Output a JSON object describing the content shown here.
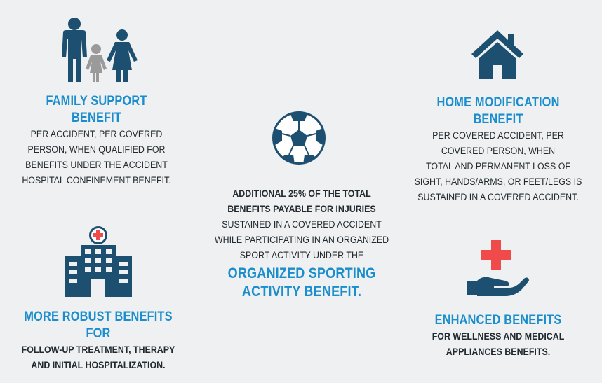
{
  "colors": {
    "navy": "#1d4f70",
    "blue_title": "#1a8dcc",
    "gray_child": "#9a9a9a",
    "red_cross": "#ef4b4b",
    "text": "#222a30",
    "background": "#eef0f1"
  },
  "family": {
    "icon": "family-icon",
    "title": "FAMILY SUPPORT BENEFIT",
    "lines": [
      "PER ACCIDENT, PER COVERED",
      "PERSON, WHEN QUALIFIED FOR",
      "BENEFITS UNDER THE ACCIDENT",
      "HOSPITAL CONFINEMENT BENEFIT."
    ]
  },
  "home": {
    "icon": "house-icon",
    "title": "HOME MODIFICATION BENEFIT",
    "lines": [
      "PER COVERED ACCIDENT, PER",
      "COVERED PERSON, WHEN",
      "TOTAL AND PERMANENT LOSS OF",
      "SIGHT, HANDS/ARMS, OR FEET/LEGS IS",
      "SUSTAINED IN A COVERED ACCIDENT."
    ]
  },
  "sport": {
    "icon": "soccer-ball-icon",
    "bold_lines": [
      "ADDITIONAL 25% OF THE TOTAL",
      "BENEFITS PAYABLE FOR INJURIES"
    ],
    "lines": [
      "SUSTAINED IN A COVERED ACCIDENT",
      "WHILE PARTICIPATING IN AN ORGANIZED",
      "SPORT ACTIVITY UNDER THE"
    ],
    "title_lines": [
      "ORGANIZED SPORTING",
      "ACTIVITY BENEFIT."
    ]
  },
  "robust": {
    "icon": "hospital-icon",
    "title": "MORE ROBUST BENEFITS FOR",
    "lines": [
      "FOLLOW-UP TREATMENT, THERAPY",
      "AND INITIAL HOSPITALIZATION."
    ]
  },
  "enhanced": {
    "icon": "hand-cross-icon",
    "title": "ENHANCED BENEFITS",
    "lines": [
      "FOR WELLNESS AND MEDICAL",
      "APPLIANCES BENEFITS."
    ]
  }
}
